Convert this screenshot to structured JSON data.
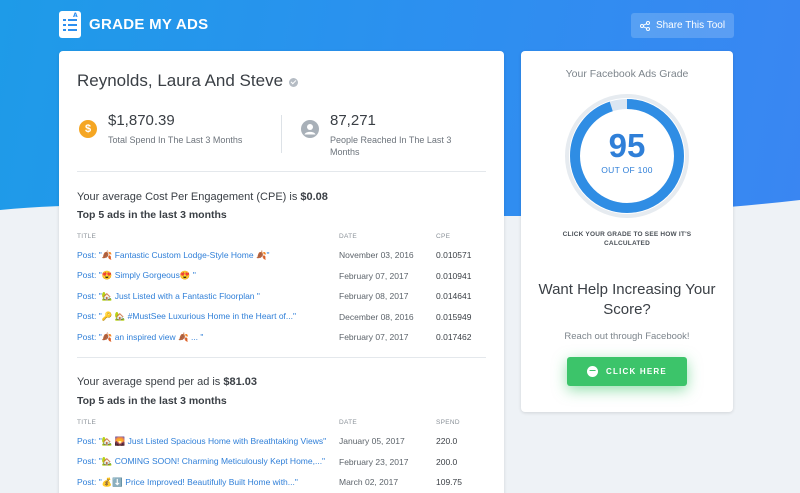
{
  "header": {
    "brand": "GRADE MY ADS",
    "share_label": "Share This Tool",
    "logo_icon": "checklist-icon",
    "share_icon": "share-icon"
  },
  "profile": {
    "name": "Reynolds, Laura And Steve",
    "verified_icon": "verified-check-icon"
  },
  "stats": {
    "spend": {
      "value": "$1,870.39",
      "label": "Total Spend In The Last 3 Months",
      "icon": "dollar-icon",
      "color": "#f5a623"
    },
    "reach": {
      "value": "87,271",
      "label": "People Reached In The Last 3 Months",
      "icon": "person-icon",
      "color": "#a8b0b8"
    }
  },
  "cpe_section": {
    "heading_prefix": "Your average Cost Per Engagement (CPE) is ",
    "heading_value": "$0.08",
    "subheading": "Top 5 ads in the last 3 months",
    "columns": [
      "TITLE",
      "DATE",
      "CPE"
    ],
    "rows": [
      {
        "title": "Post: \"🍂 Fantastic Custom Lodge-Style Home 🍂\"",
        "date": "November 03, 2016",
        "value": "0.010571"
      },
      {
        "title": "Post: \"😍 Simply Gorgeous😍 \"",
        "date": "February 07, 2017",
        "value": "0.010941"
      },
      {
        "title": "Post: \"🏡 Just Listed with a Fantastic Floorplan \"",
        "date": "February 08, 2017",
        "value": "0.014641"
      },
      {
        "title": "Post: \"🔑 🏡 #MustSee Luxurious Home in the Heart of...\"",
        "date": "December 08, 2016",
        "value": "0.015949"
      },
      {
        "title": "Post: \"🍂 an inspired view 🍂 ... \"",
        "date": "February 07, 2017",
        "value": "0.017462"
      }
    ]
  },
  "spend_section": {
    "heading_prefix": "Your average spend per ad is ",
    "heading_value": "$81.03",
    "subheading": "Top 5 ads in the last 3 months",
    "columns": [
      "TITLE",
      "DATE",
      "SPEND"
    ],
    "rows": [
      {
        "title": "Post: \"🏡 🌄 Just Listed Spacious Home with Breathtaking Views\"",
        "date": "January 05, 2017",
        "value": "220.0"
      },
      {
        "title": "Post: \"🏡 COMING SOON! Charming Meticulously Kept Home,...\"",
        "date": "February 23, 2017",
        "value": "200.0"
      },
      {
        "title": "Post: \"💰⬇️ Price Improved! Beautifully Built Home with...\"",
        "date": "March 02, 2017",
        "value": "109.75"
      }
    ]
  },
  "grade": {
    "title": "Your Facebook Ads Grade",
    "score": "95",
    "score_fraction": 0.95,
    "out_of": "OUT OF 100",
    "hint": "CLICK YOUR GRADE TO SEE HOW IT'S CALCULATED",
    "ring_color": "#2f8de4"
  },
  "help": {
    "title": "Want Help Increasing Your Score?",
    "subtitle": "Reach out through Facebook!",
    "cta_label": "CLICK HERE",
    "cta_icon": "messenger-icon",
    "cta_color": "#3cc46a"
  }
}
